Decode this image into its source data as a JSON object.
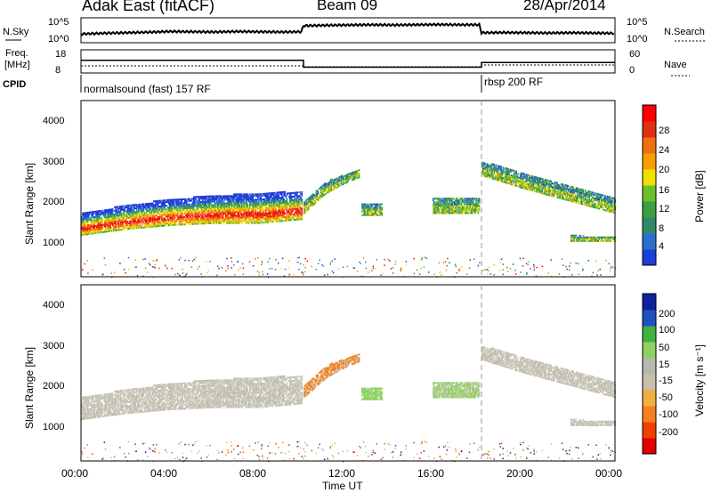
{
  "header": {
    "station": "Adak East (fitACF)",
    "beam": "Beam 09",
    "date": "28/Apr/2014"
  },
  "colors": {
    "power": [
      "#1a3fd6",
      "#2a6fd0",
      "#2f8a6a",
      "#3aa040",
      "#6cc028",
      "#f0e000",
      "#f5a000",
      "#f07010",
      "#e03010",
      "#ff0000"
    ],
    "velocity": [
      "#e00000",
      "#f04000",
      "#f58020",
      "#f0b040",
      "#c8c0a8",
      "#b8b8b0",
      "#90d060",
      "#40b040",
      "#2050c0",
      "#1020a0"
    ]
  },
  "panels": {
    "nsky": {
      "label": "N.Sky",
      "ticks_left": [
        "10^5",
        "10^0"
      ],
      "ticks_right": [
        "10^5",
        "10^0"
      ],
      "right_label": "N.Search"
    },
    "freq": {
      "label": "Freq.",
      "unit": "[MHz]",
      "ticks_left": [
        "18",
        "8"
      ],
      "ticks_right": [
        "60",
        "0"
      ],
      "right_label": "Nave"
    },
    "cpid": {
      "label": "CPID",
      "segments": [
        "normalsound (fast) 157 RF",
        "rbsp 200 RF"
      ]
    },
    "power": {
      "ylabel": "Slant Range [km]",
      "yticks": [
        "4000",
        "3000",
        "2000",
        "1000"
      ],
      "cbar_label": "Power [dB]",
      "cbar_ticks": [
        "28",
        "24",
        "20",
        "16",
        "12",
        "8",
        "4"
      ]
    },
    "velocity": {
      "ylabel": "Slant Range [km]",
      "yticks": [
        "4000",
        "3000",
        "2000",
        "1000"
      ],
      "cbar_label": "Velocity [m s⁻¹]",
      "cbar_ticks": [
        "200",
        "100",
        "50",
        "15",
        "-15",
        "-50",
        "-100",
        "-200"
      ]
    }
  },
  "chart_data": [
    {
      "type": "line",
      "title": "N.Sky",
      "x": [
        0,
        1,
        2,
        3,
        4,
        5,
        6,
        7,
        8,
        9,
        9.9,
        10,
        11,
        12,
        13,
        14,
        15,
        16,
        17,
        17.9,
        18,
        19,
        20,
        21,
        22,
        23,
        24
      ],
      "y": [
        0.35,
        0.38,
        0.4,
        0.42,
        0.45,
        0.44,
        0.43,
        0.45,
        0.44,
        0.43,
        0.44,
        0.68,
        0.7,
        0.71,
        0.72,
        0.71,
        0.72,
        0.73,
        0.72,
        0.72,
        0.4,
        0.41,
        0.4,
        0.39,
        0.4,
        0.39,
        0.38
      ]
    },
    {
      "type": "line",
      "title": "Freq.",
      "x": [
        0,
        10,
        10,
        18,
        18,
        24
      ],
      "y": [
        13.5,
        13.5,
        10.5,
        10.5,
        12.5,
        12.5
      ],
      "ylim": [
        8,
        18
      ]
    },
    {
      "type": "heatmap",
      "title": "Power [dB]",
      "xlabel": "Time UT",
      "ylabel": "Slant Range [km]",
      "xlim": [
        0,
        24
      ],
      "ylim": [
        180,
        4600
      ],
      "x_ticks": [
        "00:00",
        "04:00",
        "08:00",
        "12:00",
        "16:00",
        "20:00",
        "00:00"
      ],
      "bands": [
        {
          "x": [
            0,
            2,
            4,
            6,
            8,
            9.9
          ],
          "lower": [
            1250,
            1400,
            1500,
            1550,
            1550,
            1650
          ],
          "upper": [
            1800,
            2000,
            2150,
            2250,
            2300,
            2350
          ]
        },
        {
          "x": [
            10,
            11,
            12,
            12.5
          ],
          "lower": [
            1800,
            2300,
            2600,
            2700
          ],
          "upper": [
            2100,
            2600,
            2800,
            2900
          ]
        },
        {
          "x": [
            12.6,
            13.5
          ],
          "lower": [
            1750,
            1750
          ],
          "upper": [
            2050,
            2050
          ]
        },
        {
          "x": [
            15.8,
            17.9
          ],
          "lower": [
            1800,
            1800
          ],
          "upper": [
            2200,
            2200
          ]
        },
        {
          "x": [
            18,
            20,
            22,
            24
          ],
          "lower": [
            2750,
            2400,
            2100,
            1800
          ],
          "upper": [
            3100,
            2800,
            2500,
            2200
          ]
        },
        {
          "x": [
            22,
            24
          ],
          "lower": [
            1100,
            1100
          ],
          "upper": [
            1250,
            1200
          ]
        }
      ]
    },
    {
      "type": "heatmap",
      "title": "Velocity [m s-1]",
      "xlabel": "Time UT",
      "ylabel": "Slant Range [km]",
      "xlim": [
        0,
        24
      ],
      "ylim": [
        180,
        4600
      ],
      "x_ticks": [
        "00:00",
        "04:00",
        "08:00",
        "12:00",
        "16:00",
        "20:00",
        "00:00"
      ]
    }
  ]
}
